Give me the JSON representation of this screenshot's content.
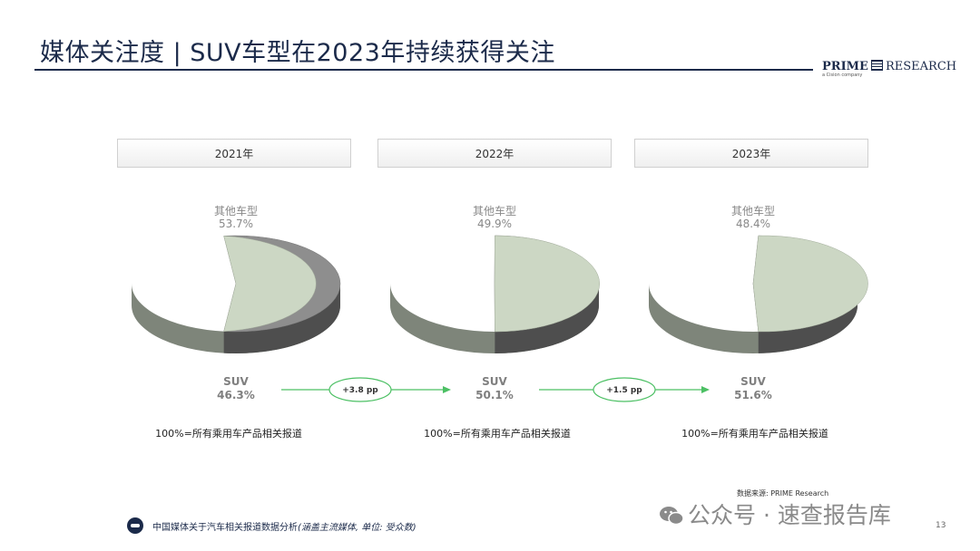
{
  "header": {
    "title": "媒体关注度 | SUV车型在2023年持续获得关注",
    "logo_bold": "PRIME",
    "logo_light": "RESEARCH",
    "logo_sub": "a Cision company"
  },
  "chart_data": {
    "type": "pie",
    "charts": [
      {
        "title": "2021年",
        "labels": [
          "其他车型",
          "SUV"
        ],
        "values": [
          53.7,
          46.3
        ],
        "value_labels": [
          "53.7%",
          "46.3%"
        ]
      },
      {
        "title": "2022年",
        "labels": [
          "其他车型",
          "SUV"
        ],
        "values": [
          49.9,
          50.1
        ],
        "value_labels": [
          "49.9%",
          "50.1%"
        ]
      },
      {
        "title": "2023年",
        "labels": [
          "其他车型",
          "SUV"
        ],
        "values": [
          48.4,
          51.6
        ],
        "value_labels": [
          "48.4%",
          "51.6%"
        ]
      }
    ],
    "changes": [
      "+3.8 pp",
      "+1.5 pp"
    ],
    "base_note": "100%=所有乘用车产品相关报道",
    "colors": {
      "other": "#8e8e8e",
      "suv": "#ccd7c4",
      "arrow": "#4cc064"
    }
  },
  "footer": {
    "source": "数据来源: PRIME Research",
    "text": "中国媒体关于汽车相关报道数据分析",
    "text_italic": "(涵盖主流媒体, 单位: 受众数)",
    "page": "13"
  },
  "watermark": {
    "text": "公众号 · 速查报告库"
  }
}
